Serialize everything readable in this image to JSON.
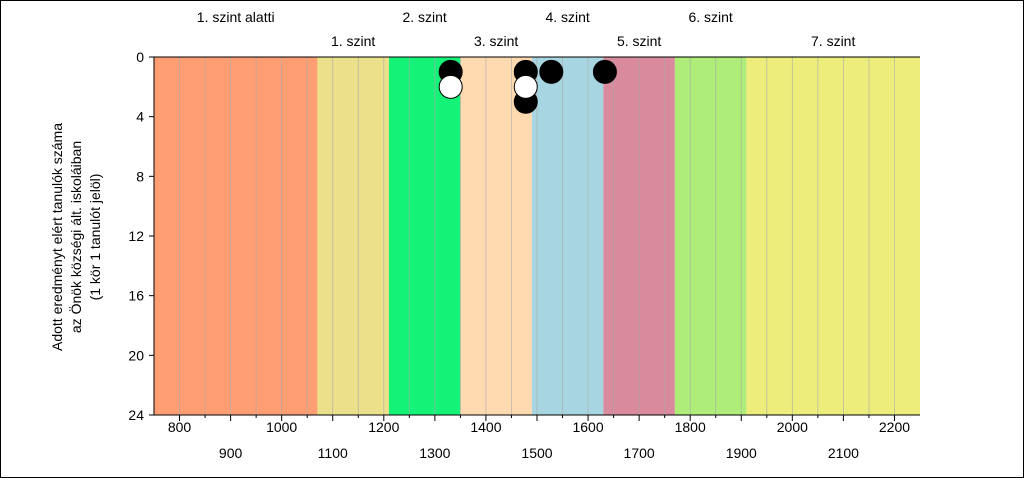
{
  "chart_data": {
    "type": "scatter",
    "ylabel_lines": [
      "Adott eredményt elért tanulók száma",
      "az Önök községi ált. iskoláiban",
      "(1 kör 1 tanulót jelöl)"
    ],
    "xlim": [
      750,
      2250
    ],
    "ylim": [
      0,
      24
    ],
    "y_inverted": true,
    "yticks": [
      "0",
      "4",
      "8",
      "12",
      "16",
      "20",
      "24"
    ],
    "xticks_row1": [
      "800",
      "1000",
      "1200",
      "1400",
      "1600",
      "1800",
      "2000",
      "2200"
    ],
    "xticks_row2": [
      "900",
      "1100",
      "1300",
      "1500",
      "1700",
      "1900",
      "2100"
    ],
    "xtick_values_row1": [
      800,
      1000,
      1200,
      1400,
      1600,
      1800,
      2000,
      2200
    ],
    "xtick_values_row2": [
      900,
      1100,
      1300,
      1500,
      1700,
      1900,
      2100
    ],
    "bands": [
      {
        "label": "1. szint alatti",
        "from": 750,
        "to": 1070,
        "color": "#FF9E73",
        "label_row": "top"
      },
      {
        "label": "1. szint",
        "from": 1070,
        "to": 1210,
        "color": "#EDE08A",
        "label_row": "bottom"
      },
      {
        "label": "2. szint",
        "from": 1210,
        "to": 1350,
        "color": "#15F278",
        "label_row": "top"
      },
      {
        "label": "3. szint",
        "from": 1350,
        "to": 1490,
        "color": "#FFD9B0",
        "label_row": "bottom"
      },
      {
        "label": "4. szint",
        "from": 1490,
        "to": 1630,
        "color": "#A8D5E2",
        "label_row": "top"
      },
      {
        "label": "5. szint",
        "from": 1630,
        "to": 1770,
        "color": "#D98A9C",
        "label_row": "bottom"
      },
      {
        "label": "6. szint",
        "from": 1770,
        "to": 1910,
        "color": "#ADED78",
        "label_row": "top"
      },
      {
        "label": "7. szint",
        "from": 1910,
        "to": 2250,
        "color": "#EDED7B",
        "label_row": "bottom"
      }
    ],
    "series": [
      {
        "marker": "filled",
        "color": "#000000",
        "points": [
          [
            1331,
            1
          ],
          [
            1478,
            1
          ],
          [
            1528,
            1
          ],
          [
            1633,
            1
          ],
          [
            1478,
            3
          ]
        ]
      },
      {
        "marker": "open",
        "color": "#ffffff",
        "points": [
          [
            1331,
            2
          ],
          [
            1478,
            2
          ]
        ]
      }
    ]
  }
}
